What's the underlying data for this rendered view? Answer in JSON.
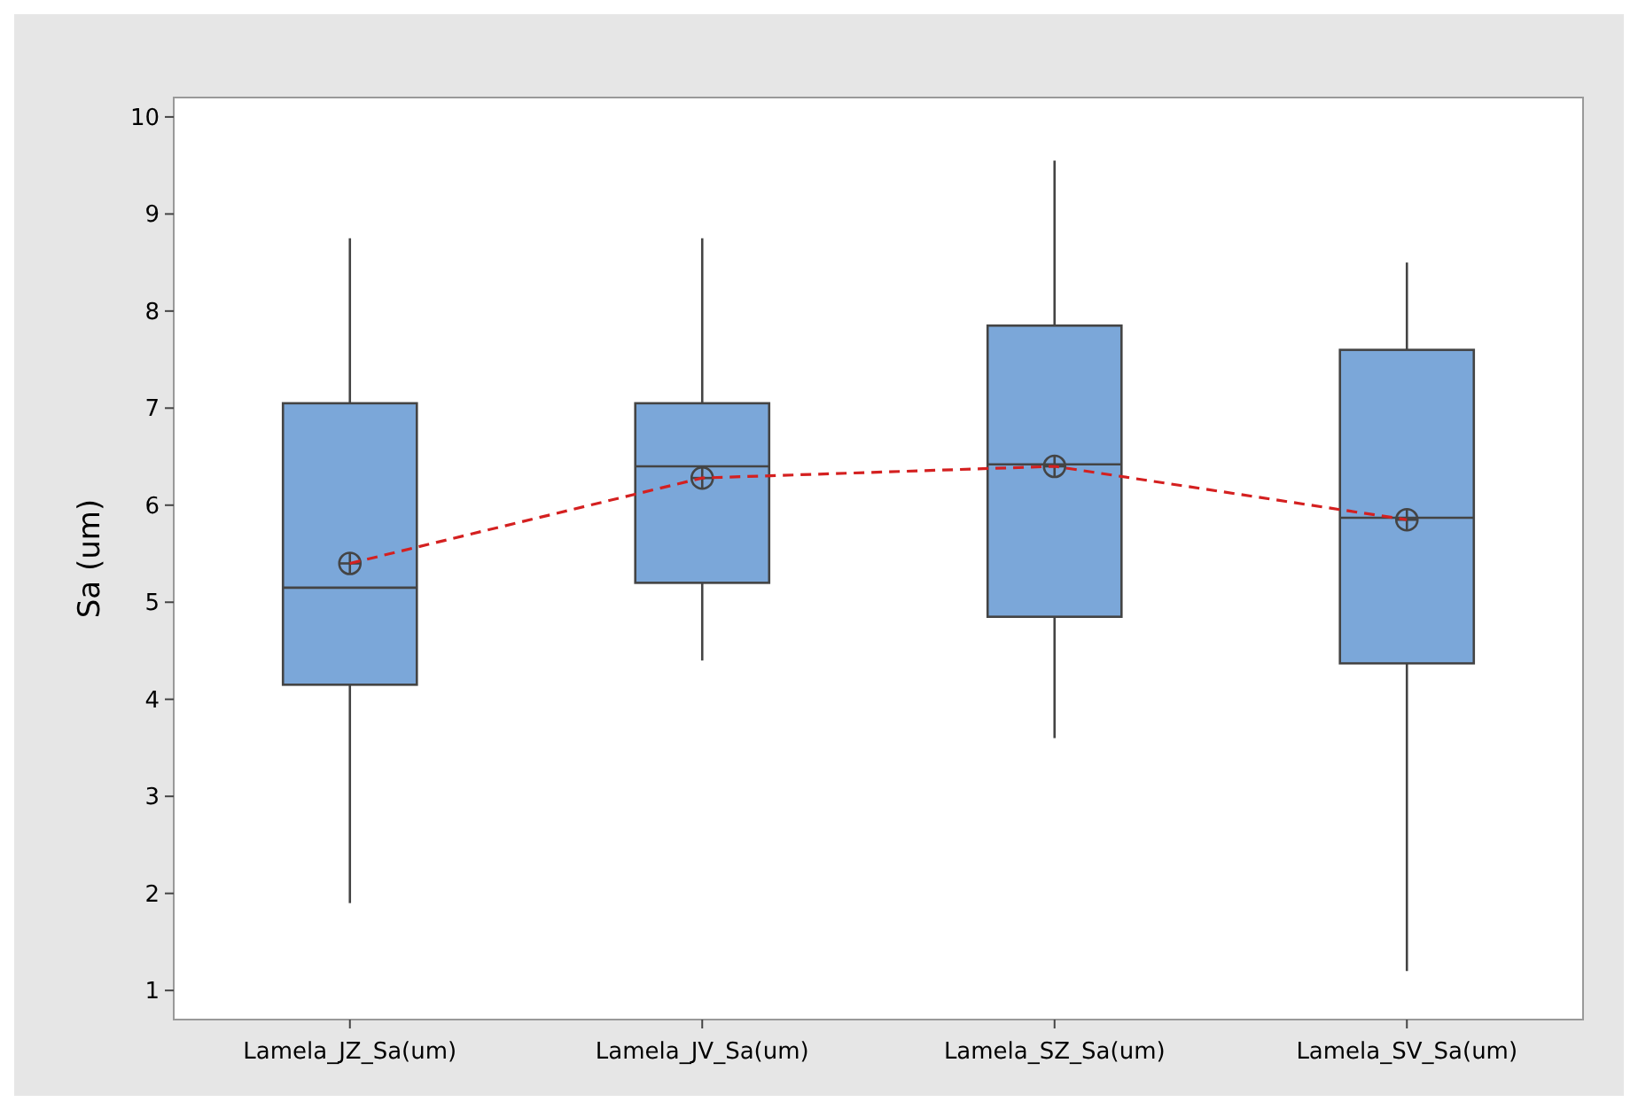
{
  "chart_data": {
    "type": "box",
    "ylabel": "Sa (um)",
    "categories": [
      "Lamela_JZ_Sa(um)",
      "Lamela_JV_Sa(um)",
      "Lamela_SZ_Sa(um)",
      "Lamela_SV_Sa(um)"
    ],
    "boxes": [
      {
        "low": 1.9,
        "q1": 4.15,
        "median": 5.15,
        "q3": 7.05,
        "high": 8.75,
        "mean": 5.4
      },
      {
        "low": 4.4,
        "q1": 5.2,
        "median": 6.4,
        "q3": 7.05,
        "high": 8.75,
        "mean": 6.28
      },
      {
        "low": 3.6,
        "q1": 4.85,
        "median": 6.42,
        "q3": 7.85,
        "high": 9.55,
        "mean": 6.4
      },
      {
        "low": 1.2,
        "q1": 4.37,
        "median": 5.87,
        "q3": 7.6,
        "high": 8.5,
        "mean": 5.85
      }
    ],
    "color": "#7ba7d9",
    "series": [
      {
        "type": "line",
        "color": "#d42020",
        "line_style": "dashed",
        "marker": "none",
        "values": [
          5.4,
          6.28,
          6.4,
          5.85
        ]
      }
    ],
    "ylim": [
      0.7,
      10.2
    ],
    "yticks": [
      1,
      2,
      3,
      4,
      5,
      6,
      7,
      8,
      9,
      10
    ],
    "grid": false
  }
}
